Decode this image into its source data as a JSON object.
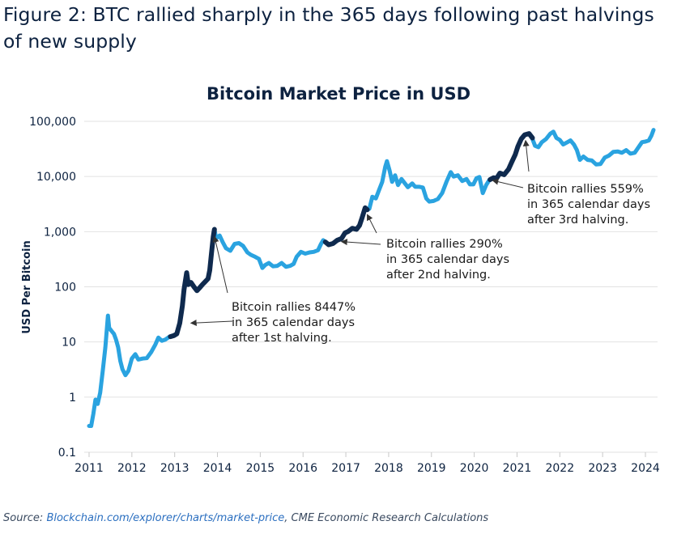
{
  "figure": {
    "title": "Figure 2: BTC rallied sharply in the 365 days following past halvings of new supply",
    "source_prefix": "Source: ",
    "source_link": "Blockchain.com/explorer/charts/market-price",
    "source_suffix": ", CME Economic Research Calculations"
  },
  "colors": {
    "light_series": "#2aa3e0",
    "dark_series": "#0f2a4e",
    "title_text": "#0d2240",
    "axis_text": "#0d2240",
    "gridline": "#e2e2e2",
    "arrow": "#333333"
  },
  "chart_data": {
    "type": "line",
    "title": "Bitcoin Market Price in USD",
    "xlabel": "",
    "ylabel": "USD Per Bitcoin",
    "yscale": "log",
    "ylim": [
      0.1,
      100000
    ],
    "xlim": [
      2011.0,
      2024.2
    ],
    "grid": "horizontal",
    "y_ticks": [
      {
        "value": 0.1,
        "label": "0.1"
      },
      {
        "value": 1,
        "label": "1"
      },
      {
        "value": 10,
        "label": "10"
      },
      {
        "value": 100,
        "label": "100"
      },
      {
        "value": 1000,
        "label": "1,000"
      },
      {
        "value": 10000,
        "label": "10,000"
      },
      {
        "value": 100000,
        "label": "100,000"
      }
    ],
    "x_ticks": [
      "2011",
      "2012",
      "2013",
      "2014",
      "2015",
      "2016",
      "2017",
      "2018",
      "2019",
      "2020",
      "2021",
      "2022",
      "2023",
      "2024"
    ],
    "series": [
      {
        "role": "price",
        "points": [
          [
            2011.0,
            0.3
          ],
          [
            2011.05,
            0.3
          ],
          [
            2011.1,
            0.5
          ],
          [
            2011.15,
            0.9
          ],
          [
            2011.2,
            0.75
          ],
          [
            2011.26,
            1.2
          ],
          [
            2011.32,
            3.0
          ],
          [
            2011.38,
            8.0
          ],
          [
            2011.44,
            30.0
          ],
          [
            2011.47,
            18.0
          ],
          [
            2011.52,
            16.0
          ],
          [
            2011.58,
            14.0
          ],
          [
            2011.63,
            11.0
          ],
          [
            2011.68,
            8.0
          ],
          [
            2011.73,
            4.5
          ],
          [
            2011.78,
            3.2
          ],
          [
            2011.85,
            2.5
          ],
          [
            2011.92,
            3.0
          ],
          [
            2012.0,
            5.0
          ],
          [
            2012.08,
            6.0
          ],
          [
            2012.15,
            4.8
          ],
          [
            2012.25,
            5.0
          ],
          [
            2012.35,
            5.1
          ],
          [
            2012.45,
            6.5
          ],
          [
            2012.55,
            9.0
          ],
          [
            2012.62,
            12.0
          ],
          [
            2012.7,
            10.5
          ],
          [
            2012.78,
            11.0
          ],
          [
            2012.88,
            12.5
          ],
          [
            2012.95,
            13.0
          ],
          [
            2013.05,
            14.0
          ],
          [
            2013.12,
            22.0
          ],
          [
            2013.18,
            45.0
          ],
          [
            2013.22,
            90.0
          ],
          [
            2013.28,
            180.0
          ],
          [
            2013.32,
            110.0
          ],
          [
            2013.38,
            120.0
          ],
          [
            2013.45,
            100.0
          ],
          [
            2013.52,
            85.0
          ],
          [
            2013.58,
            95.0
          ],
          [
            2013.65,
            110.0
          ],
          [
            2013.72,
            125.0
          ],
          [
            2013.78,
            140.0
          ],
          [
            2013.82,
            200.0
          ],
          [
            2013.86,
            400.0
          ],
          [
            2013.9,
            800.0
          ],
          [
            2013.93,
            1100.0
          ],
          [
            2013.97,
            750.0
          ],
          [
            2014.05,
            850.0
          ],
          [
            2014.12,
            650.0
          ],
          [
            2014.2,
            500.0
          ],
          [
            2014.3,
            450.0
          ],
          [
            2014.4,
            600.0
          ],
          [
            2014.5,
            620.0
          ],
          [
            2014.6,
            550.0
          ],
          [
            2014.7,
            420.0
          ],
          [
            2014.78,
            380.0
          ],
          [
            2014.88,
            350.0
          ],
          [
            2014.97,
            320.0
          ],
          [
            2015.05,
            220.0
          ],
          [
            2015.12,
            250.0
          ],
          [
            2015.2,
            270.0
          ],
          [
            2015.3,
            235.0
          ],
          [
            2015.4,
            240.0
          ],
          [
            2015.5,
            270.0
          ],
          [
            2015.6,
            230.0
          ],
          [
            2015.7,
            240.0
          ],
          [
            2015.78,
            260.0
          ],
          [
            2015.85,
            350.0
          ],
          [
            2015.95,
            430.0
          ],
          [
            2016.05,
            400.0
          ],
          [
            2016.15,
            420.0
          ],
          [
            2016.25,
            430.0
          ],
          [
            2016.35,
            460.0
          ],
          [
            2016.42,
            600.0
          ],
          [
            2016.47,
            700.0
          ],
          [
            2016.52,
            650.0
          ],
          [
            2016.6,
            580.0
          ],
          [
            2016.7,
            610.0
          ],
          [
            2016.8,
            700.0
          ],
          [
            2016.9,
            750.0
          ],
          [
            2016.98,
            950.0
          ],
          [
            2017.05,
            1000.0
          ],
          [
            2017.15,
            1150.0
          ],
          [
            2017.25,
            1100.0
          ],
          [
            2017.32,
            1300.0
          ],
          [
            2017.38,
            1800.0
          ],
          [
            2017.45,
            2700.0
          ],
          [
            2017.5,
            2500.0
          ],
          [
            2017.55,
            2600.0
          ],
          [
            2017.62,
            4300.0
          ],
          [
            2017.7,
            4000.0
          ],
          [
            2017.78,
            5800.0
          ],
          [
            2017.85,
            8000.0
          ],
          [
            2017.92,
            15000.0
          ],
          [
            2017.96,
            19000.0
          ],
          [
            2018.02,
            13000.0
          ],
          [
            2018.08,
            8000.0
          ],
          [
            2018.15,
            10500.0
          ],
          [
            2018.22,
            7000.0
          ],
          [
            2018.3,
            9000.0
          ],
          [
            2018.38,
            7500.0
          ],
          [
            2018.45,
            6400.0
          ],
          [
            2018.55,
            7500.0
          ],
          [
            2018.62,
            6500.0
          ],
          [
            2018.72,
            6500.0
          ],
          [
            2018.8,
            6300.0
          ],
          [
            2018.88,
            4000.0
          ],
          [
            2018.95,
            3500.0
          ],
          [
            2019.05,
            3600.0
          ],
          [
            2019.15,
            3900.0
          ],
          [
            2019.25,
            5000.0
          ],
          [
            2019.35,
            8000.0
          ],
          [
            2019.45,
            12000.0
          ],
          [
            2019.52,
            10000.0
          ],
          [
            2019.62,
            10500.0
          ],
          [
            2019.72,
            8300.0
          ],
          [
            2019.82,
            9000.0
          ],
          [
            2019.9,
            7200.0
          ],
          [
            2019.98,
            7200.0
          ],
          [
            2020.05,
            9300.0
          ],
          [
            2020.12,
            9800.0
          ],
          [
            2020.2,
            5000.0
          ],
          [
            2020.28,
            7000.0
          ],
          [
            2020.36,
            8800.0
          ],
          [
            2020.45,
            9500.0
          ],
          [
            2020.52,
            9200.0
          ],
          [
            2020.6,
            11500.0
          ],
          [
            2020.7,
            10800.0
          ],
          [
            2020.8,
            13500.0
          ],
          [
            2020.88,
            18500.0
          ],
          [
            2020.96,
            25000.0
          ],
          [
            2021.02,
            35000.0
          ],
          [
            2021.1,
            48000.0
          ],
          [
            2021.18,
            57000.0
          ],
          [
            2021.28,
            60000.0
          ],
          [
            2021.35,
            50000.0
          ],
          [
            2021.42,
            36000.0
          ],
          [
            2021.5,
            34000.0
          ],
          [
            2021.58,
            42000.0
          ],
          [
            2021.68,
            48000.0
          ],
          [
            2021.78,
            60000.0
          ],
          [
            2021.85,
            65000.0
          ],
          [
            2021.92,
            50000.0
          ],
          [
            2022.0,
            46000.0
          ],
          [
            2022.08,
            38000.0
          ],
          [
            2022.18,
            42000.0
          ],
          [
            2022.25,
            45000.0
          ],
          [
            2022.33,
            38000.0
          ],
          [
            2022.4,
            30000.0
          ],
          [
            2022.47,
            20000.0
          ],
          [
            2022.55,
            23000.0
          ],
          [
            2022.65,
            20000.0
          ],
          [
            2022.75,
            19500.0
          ],
          [
            2022.85,
            16500.0
          ],
          [
            2022.95,
            16800.0
          ],
          [
            2023.05,
            22000.0
          ],
          [
            2023.15,
            24000.0
          ],
          [
            2023.25,
            28000.0
          ],
          [
            2023.35,
            28500.0
          ],
          [
            2023.45,
            27000.0
          ],
          [
            2023.55,
            30000.0
          ],
          [
            2023.65,
            26000.0
          ],
          [
            2023.75,
            27000.0
          ],
          [
            2023.85,
            35000.0
          ],
          [
            2023.92,
            42000.0
          ],
          [
            2024.0,
            43000.0
          ],
          [
            2024.08,
            45000.0
          ],
          [
            2024.14,
            55000.0
          ],
          [
            2024.19,
            70000.0
          ]
        ]
      },
      {
        "role": "halving-1-rally",
        "points": [
          [
            2012.9,
            12.5
          ],
          [
            2012.98,
            13.0
          ],
          [
            2013.05,
            14.0
          ],
          [
            2013.12,
            22.0
          ],
          [
            2013.18,
            45.0
          ],
          [
            2013.22,
            90.0
          ],
          [
            2013.28,
            180.0
          ],
          [
            2013.32,
            110.0
          ],
          [
            2013.38,
            120.0
          ],
          [
            2013.45,
            100.0
          ],
          [
            2013.52,
            85.0
          ],
          [
            2013.58,
            95.0
          ],
          [
            2013.65,
            110.0
          ],
          [
            2013.72,
            125.0
          ],
          [
            2013.78,
            140.0
          ],
          [
            2013.82,
            200.0
          ],
          [
            2013.86,
            400.0
          ],
          [
            2013.9,
            800.0
          ],
          [
            2013.93,
            1100.0
          ]
        ]
      },
      {
        "role": "halving-2-rally",
        "points": [
          [
            2016.52,
            650.0
          ],
          [
            2016.6,
            580.0
          ],
          [
            2016.7,
            610.0
          ],
          [
            2016.8,
            700.0
          ],
          [
            2016.9,
            750.0
          ],
          [
            2016.98,
            950.0
          ],
          [
            2017.05,
            1000.0
          ],
          [
            2017.15,
            1150.0
          ],
          [
            2017.25,
            1100.0
          ],
          [
            2017.32,
            1300.0
          ],
          [
            2017.38,
            1800.0
          ],
          [
            2017.45,
            2700.0
          ],
          [
            2017.5,
            2500.0
          ]
        ]
      },
      {
        "role": "halving-3-rally",
        "points": [
          [
            2020.37,
            8800.0
          ],
          [
            2020.45,
            9500.0
          ],
          [
            2020.52,
            9200.0
          ],
          [
            2020.6,
            11500.0
          ],
          [
            2020.7,
            10800.0
          ],
          [
            2020.8,
            13500.0
          ],
          [
            2020.88,
            18500.0
          ],
          [
            2020.96,
            25000.0
          ],
          [
            2021.02,
            35000.0
          ],
          [
            2021.1,
            48000.0
          ],
          [
            2021.18,
            57000.0
          ],
          [
            2021.28,
            60000.0
          ],
          [
            2021.36,
            50000.0
          ]
        ]
      }
    ],
    "annotations": [
      {
        "lines": [
          "Bitcoin rallies 8447%",
          "in 365 calendar days",
          "after 1st halving."
        ],
        "arrow_to": [
          2013.38,
          22
        ]
      },
      {
        "lines": [
          "Bitcoin rallies 290%",
          "in 365 calendar days",
          "after 2nd halving."
        ],
        "arrow_to": [
          2016.9,
          660
        ]
      },
      {
        "lines": [
          "Bitcoin rallies 559%",
          "in 365 calendar days",
          "after 3rd halving."
        ],
        "arrow_to": [
          2020.43,
          8500
        ]
      }
    ]
  }
}
